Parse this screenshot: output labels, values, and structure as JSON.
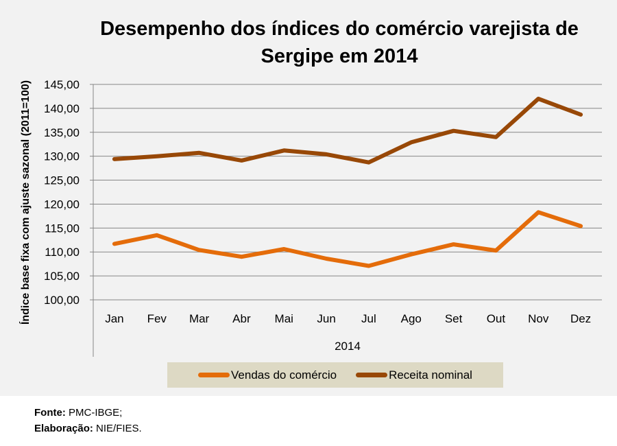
{
  "chart_data": {
    "type": "line",
    "title": "Desempenho dos índices do comércio varejista de Sergipe em 2014",
    "title_lines": [
      "Desempenho dos índices do comércio varejista de",
      "Sergipe em 2014"
    ],
    "xlabel": "2014",
    "ylabel": "Índice base fixa com ajuste sazonal  (2011=100)",
    "categories": [
      "Jan",
      "Fev",
      "Mar",
      "Abr",
      "Mai",
      "Jun",
      "Jul",
      "Ago",
      "Set",
      "Out",
      "Nov",
      "Dez"
    ],
    "ylim": [
      100,
      145
    ],
    "yticks": [
      100,
      105,
      110,
      115,
      120,
      125,
      130,
      135,
      140,
      145
    ],
    "ytick_labels": [
      "100,00",
      "105,00",
      "110,00",
      "115,00",
      "120,00",
      "125,00",
      "130,00",
      "135,00",
      "140,00",
      "145,00"
    ],
    "grid": true,
    "legend_position": "bottom",
    "series": [
      {
        "name": "Vendas do comércio",
        "color": "#e46c0a",
        "values": [
          111.7,
          113.5,
          110.4,
          109.0,
          110.6,
          108.6,
          107.1,
          109.5,
          111.6,
          110.3,
          118.3,
          115.4
        ]
      },
      {
        "name": "Receita nominal",
        "color": "#984807",
        "values": [
          129.4,
          130.0,
          130.7,
          129.1,
          131.2,
          130.4,
          128.7,
          132.9,
          135.3,
          134.0,
          142.0,
          138.7
        ]
      }
    ]
  },
  "footer": {
    "source_label": "Fonte:",
    "source_value": "PMC-IBGE;",
    "author_label": "Elaboração:",
    "author_value": "NIE/FIES."
  }
}
